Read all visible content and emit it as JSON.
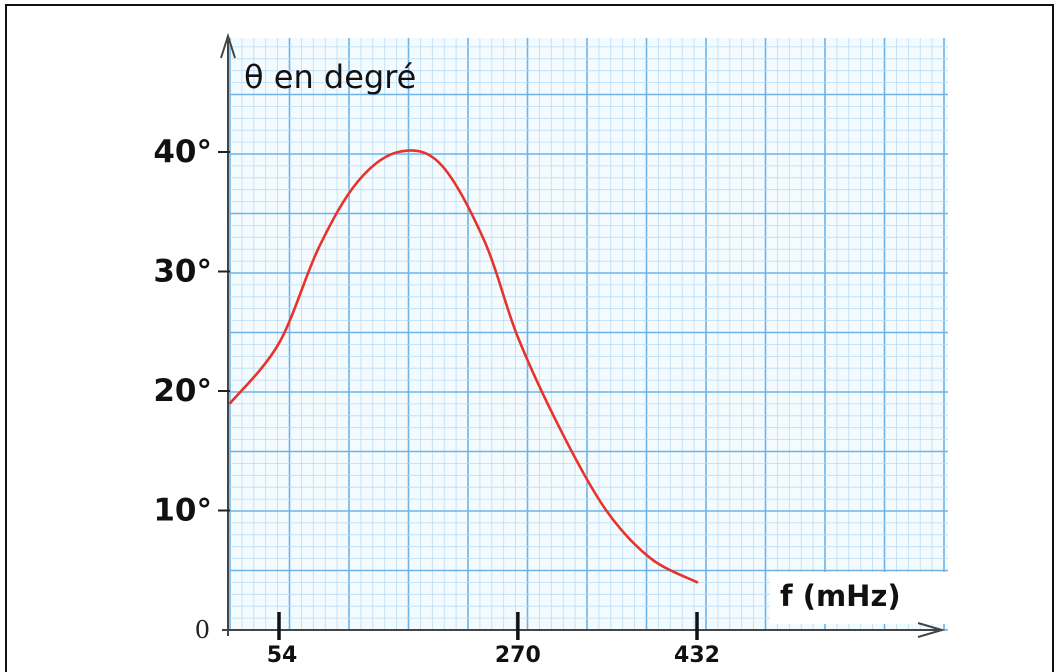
{
  "chart_data": {
    "type": "line",
    "title": "θ en degré",
    "xlabel": "f (mHz)",
    "ylabel": "θ en degré",
    "grid": true,
    "xlim": [
      -30,
      465
    ],
    "ylim": [
      0,
      44
    ],
    "x_ticks": [
      {
        "value": 54,
        "label": "54"
      },
      {
        "value": 270,
        "label": "270"
      },
      {
        "value": 432,
        "label": "432"
      }
    ],
    "y_ticks": [
      {
        "value": 0,
        "label": "0"
      },
      {
        "value": 10,
        "label": "10°"
      },
      {
        "value": 20,
        "label": "20°"
      },
      {
        "value": 30,
        "label": "30°"
      },
      {
        "value": 40,
        "label": "40°"
      }
    ],
    "series": [
      {
        "color": "#e8322a",
        "x": [
          10,
          54,
          90,
          125,
          162,
          200,
          240,
          270,
          310,
          350,
          390,
          432
        ],
        "y": [
          19,
          24,
          32,
          37.5,
          40,
          39,
          32.5,
          24.5,
          16.5,
          10,
          6,
          4
        ]
      }
    ]
  }
}
